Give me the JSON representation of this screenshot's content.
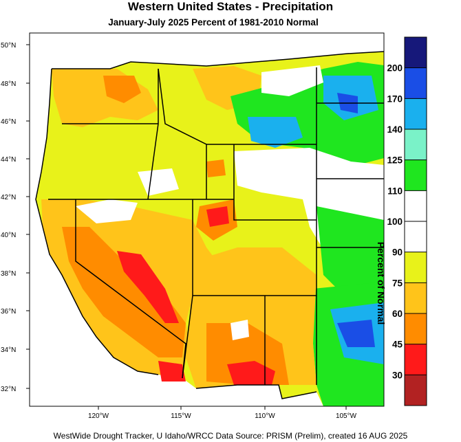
{
  "map": {
    "title": "Western United States - Precipitation",
    "subtitle": "January-July 2025  Percent of 1981-2010 Normal",
    "footer": "WestWide Drought Tracker, U Idaho/WRCC Data Source: PRISM (Prelim), created 16 AUG 2025",
    "lat_labels": [
      "50°N",
      "48°N",
      "46°N",
      "44°N",
      "42°N",
      "40°N",
      "38°N",
      "36°N",
      "34°N",
      "32°N"
    ],
    "lon_labels": [
      "120°W",
      "115°W",
      "110°W",
      "105°W"
    ],
    "colorbar": {
      "label": "Percent of Normal",
      "tick_labels": [
        "200",
        "170",
        "140",
        "125",
        "110",
        "100",
        "90",
        "75",
        "60",
        "45",
        "30"
      ],
      "colors": [
        "#16187a",
        "#1a4ee6",
        "#1ab0ee",
        "#7af2c8",
        "#1fe61f",
        "#ffffff",
        "#ffffff",
        "#e8f21a",
        "#ffc41a",
        "#ff8c00",
        "#ff1a1a",
        "#b22222"
      ]
    }
  }
}
